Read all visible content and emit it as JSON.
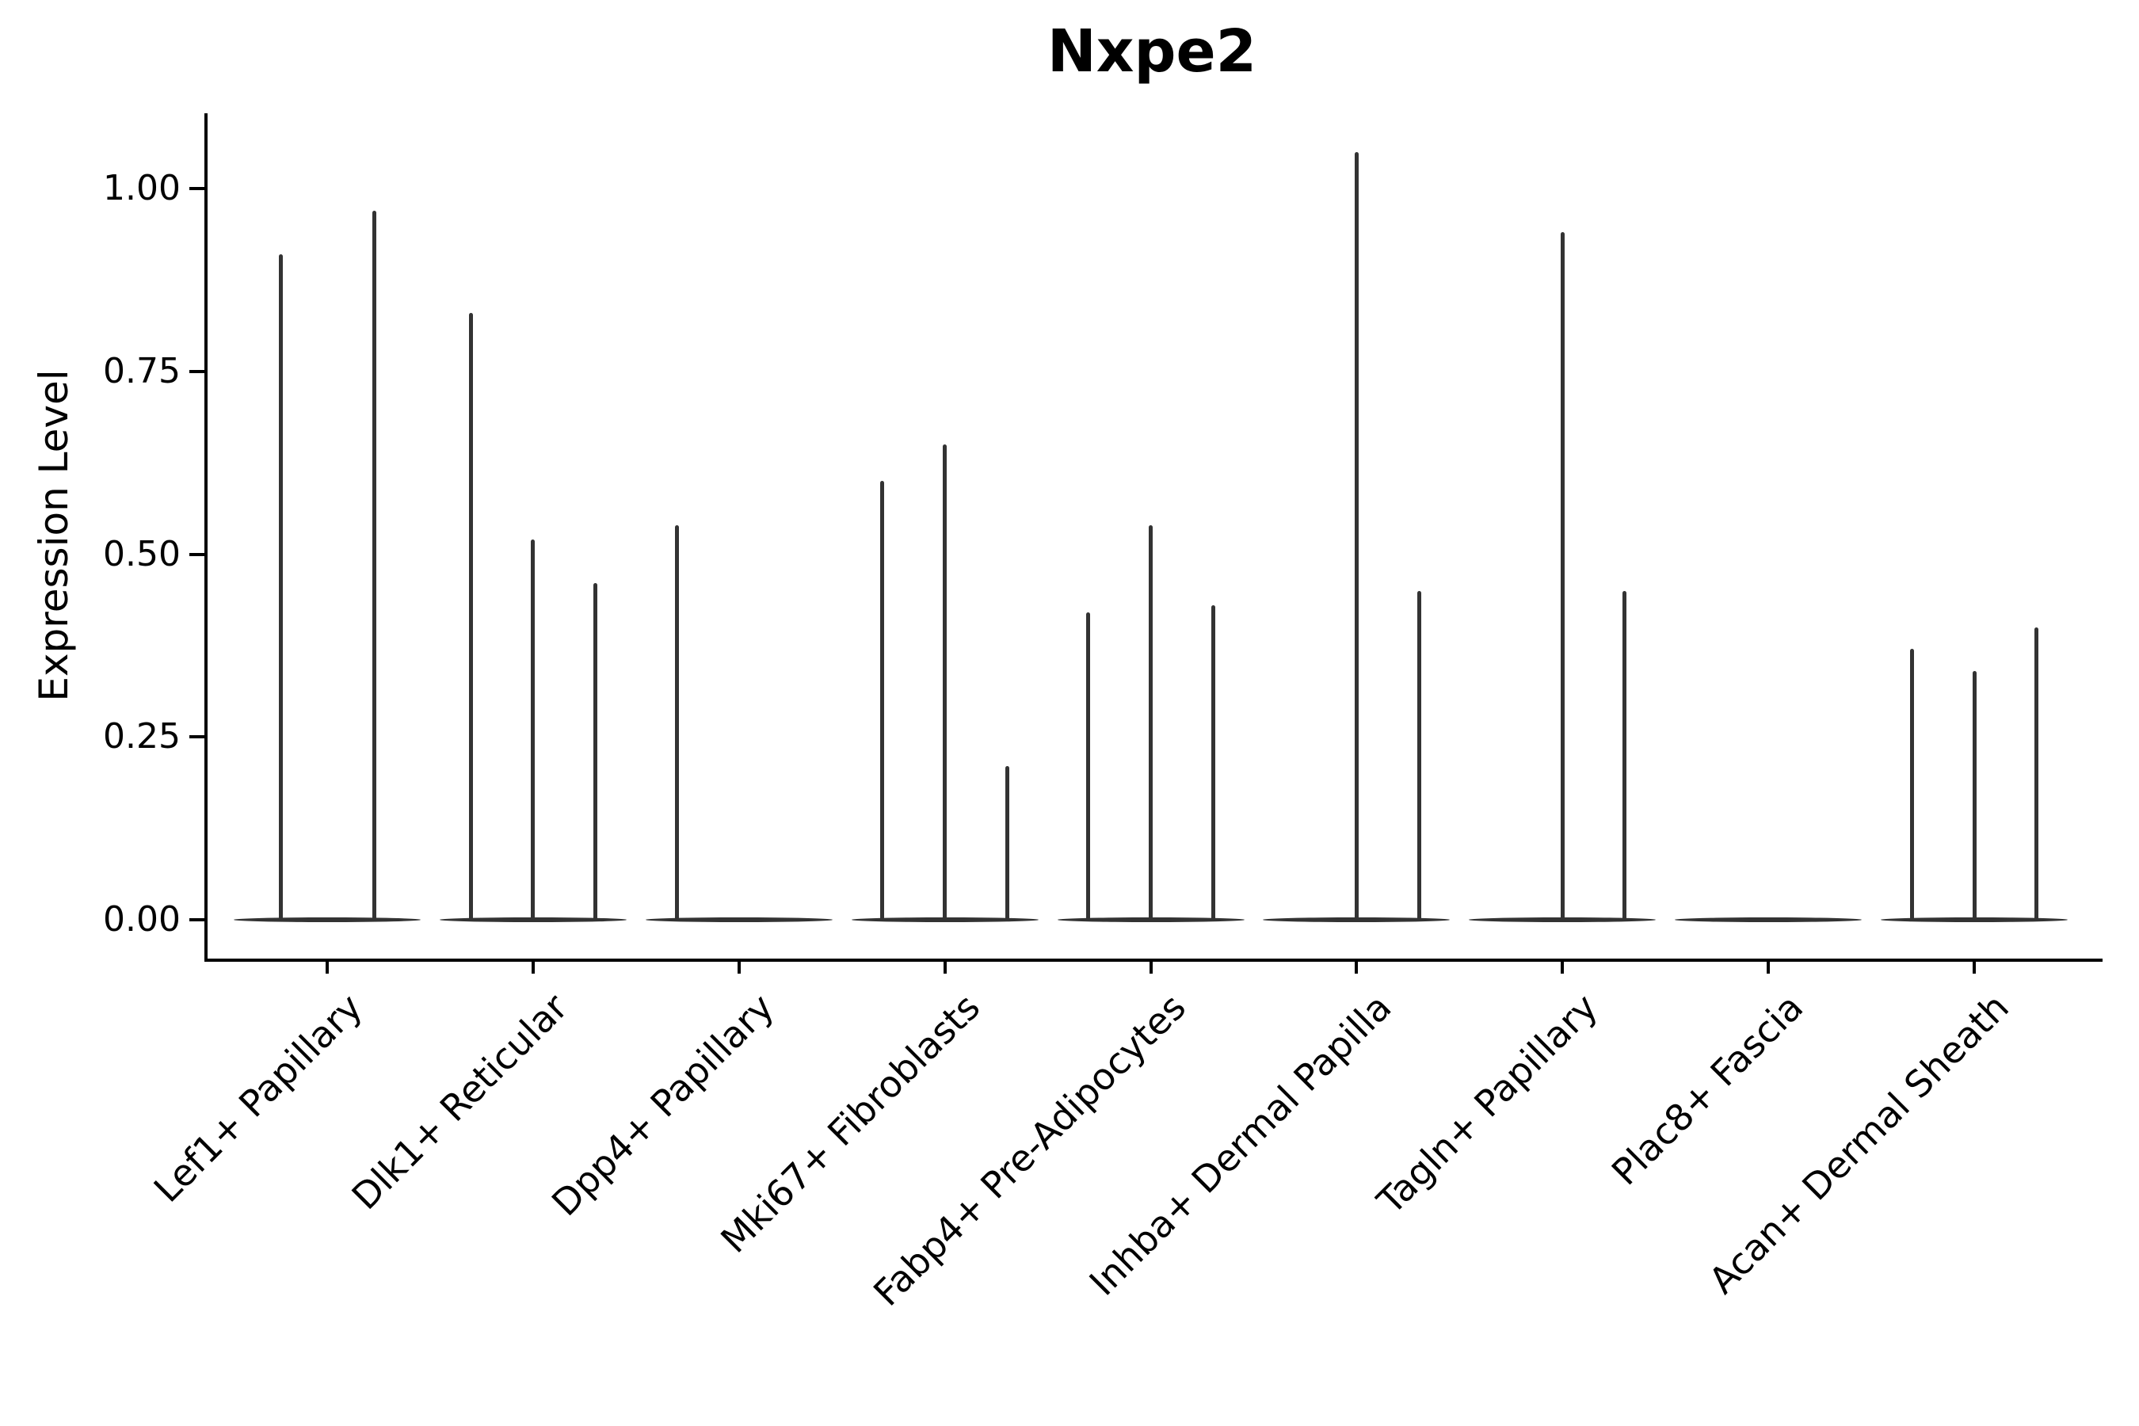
{
  "chart_data": {
    "type": "violin",
    "title": "Nxpe2",
    "ylabel": "Expression Level",
    "xlabel": "",
    "ylim": [
      0,
      1.1
    ],
    "yticks": [
      0.0,
      0.25,
      0.5,
      0.75,
      1.0
    ],
    "ytick_labels": [
      "0.00",
      "0.25",
      "0.50",
      "0.75",
      "1.00"
    ],
    "grid": false,
    "legend": null,
    "categories": [
      "Lef1+ Papillary",
      "Dlk1+ Reticular",
      "Dpp4+ Papillary",
      "Mki67+ Fibroblasts",
      "Fabp4+ Pre-Adipocytes",
      "Inhba+ Dermal Papilla",
      "Tagln+ Papillary",
      "Plac8+ Fascia",
      "Acan+ Dermal Sheath"
    ],
    "groups": [
      {
        "category": "Lef1+ Papillary",
        "spikes": [
          0.91,
          0.97
        ]
      },
      {
        "category": "Dlk1+ Reticular",
        "spikes": [
          0.83,
          0.52,
          0.46
        ]
      },
      {
        "category": "Dpp4+ Papillary",
        "spikes": [
          0.54,
          null,
          null
        ]
      },
      {
        "category": "Mki67+ Fibroblasts",
        "spikes": [
          0.6,
          0.65,
          0.21
        ]
      },
      {
        "category": "Fabp4+ Pre-Adipocytes",
        "spikes": [
          0.42,
          0.54,
          0.43
        ]
      },
      {
        "category": "Inhba+ Dermal Papilla",
        "spikes": [
          null,
          1.05,
          0.45
        ]
      },
      {
        "category": "Tagln+ Papillary",
        "spikes": [
          null,
          0.94,
          0.45
        ]
      },
      {
        "category": "Plac8+ Fascia",
        "spikes": [
          null,
          null,
          null
        ]
      },
      {
        "category": "Acan+ Dermal Sheath",
        "spikes": [
          0.37,
          0.34,
          0.4
        ]
      }
    ],
    "colors": {
      "violin": "#333333",
      "spine": "#000000",
      "text": "#000000"
    }
  }
}
